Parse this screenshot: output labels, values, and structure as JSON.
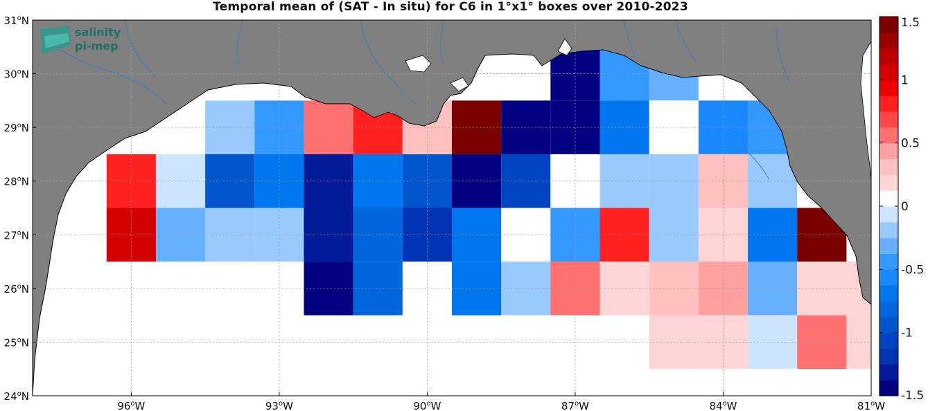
{
  "title": "Temporal mean of (SAT - In situ) for C6 in 1°x1° boxes over 2010-2023",
  "logo": {
    "line1": "salinity",
    "line2": "pi-mep"
  },
  "map": {
    "lon_range": [
      -98,
      -81
    ],
    "lat_range": [
      24,
      31
    ],
    "land_color": "#808080",
    "ocean_color": "#ffffff",
    "grid": true
  },
  "axes": {
    "lon_ticks": [
      {
        "value": -96,
        "label": "96",
        "unit": "W"
      },
      {
        "value": -93,
        "label": "93",
        "unit": "W"
      },
      {
        "value": -90,
        "label": "90",
        "unit": "W"
      },
      {
        "value": -87,
        "label": "87",
        "unit": "W"
      },
      {
        "value": -84,
        "label": "84",
        "unit": "W"
      },
      {
        "value": -81,
        "label": "81",
        "unit": "W"
      }
    ],
    "lat_ticks": [
      {
        "value": 24,
        "label": "24",
        "unit": "N"
      },
      {
        "value": 25,
        "label": "25",
        "unit": "N"
      },
      {
        "value": 26,
        "label": "26",
        "unit": "N"
      },
      {
        "value": 27,
        "label": "27",
        "unit": "N"
      },
      {
        "value": 28,
        "label": "28",
        "unit": "N"
      },
      {
        "value": 29,
        "label": "29",
        "unit": "N"
      },
      {
        "value": 30,
        "label": "30",
        "unit": "N"
      },
      {
        "value": 31,
        "label": "31",
        "unit": "N"
      }
    ],
    "degree_symbol": "o"
  },
  "colorbar": {
    "range": [
      -1.5,
      1.5
    ],
    "n_levels": 24,
    "colors": [
      "#000080",
      "#001a99",
      "#0033b3",
      "#0044c2",
      "#0055cc",
      "#0066dd",
      "#0077ee",
      "#1a88ff",
      "#3399ff",
      "#66b0ff",
      "#99caff",
      "#cce4ff",
      "#ffffff",
      "#ffd5d5",
      "#ffc0c0",
      "#ffa0a0",
      "#ff7070",
      "#ff4545",
      "#ff2020",
      "#ee0000",
      "#d40000",
      "#b80000",
      "#990000",
      "#7a0000"
    ],
    "ticks": [
      {
        "value": 1.5,
        "label": "1.5"
      },
      {
        "value": 1,
        "label": "1"
      },
      {
        "value": 0.5,
        "label": "0.5"
      },
      {
        "value": 0,
        "label": "0"
      },
      {
        "value": -0.5,
        "label": "-0.5"
      },
      {
        "value": -1,
        "label": "-1"
      },
      {
        "value": -1.5,
        "label": "-1.5"
      }
    ]
  },
  "boxes": [
    {
      "lon": -96,
      "lat": 28,
      "v": 0.85
    },
    {
      "lon": -96,
      "lat": 27,
      "v": 1.0
    },
    {
      "lon": -95,
      "lat": 28,
      "v": -0.1
    },
    {
      "lon": -95,
      "lat": 27,
      "v": -0.3
    },
    {
      "lon": -94,
      "lat": 29,
      "v": -0.15
    },
    {
      "lon": -94,
      "lat": 28,
      "v": -0.95
    },
    {
      "lon": -94,
      "lat": 27,
      "v": -0.15
    },
    {
      "lon": -93,
      "lat": 29,
      "v": -0.4
    },
    {
      "lon": -93,
      "lat": 28,
      "v": -0.75
    },
    {
      "lon": -93,
      "lat": 27,
      "v": -0.15
    },
    {
      "lon": -92,
      "lat": 29,
      "v": 0.55
    },
    {
      "lon": -92,
      "lat": 28,
      "v": -1.3
    },
    {
      "lon": -92,
      "lat": 27,
      "v": -1.3
    },
    {
      "lon": -92,
      "lat": 26,
      "v": -1.5
    },
    {
      "lon": -91,
      "lat": 29,
      "v": 0.85
    },
    {
      "lon": -91,
      "lat": 28,
      "v": -0.75
    },
    {
      "lon": -91,
      "lat": 27,
      "v": -0.85
    },
    {
      "lon": -91,
      "lat": 26,
      "v": -0.85
    },
    {
      "lon": -90,
      "lat": 29,
      "v": 0.25
    },
    {
      "lon": -90,
      "lat": 28,
      "v": -0.95
    },
    {
      "lon": -90,
      "lat": 27,
      "v": -1.15
    },
    {
      "lon": -89,
      "lat": 29,
      "v": 1.5
    },
    {
      "lon": -89,
      "lat": 28,
      "v": -1.5
    },
    {
      "lon": -89,
      "lat": 27,
      "v": -0.75
    },
    {
      "lon": -89,
      "lat": 26,
      "v": -0.75
    },
    {
      "lon": -88,
      "lat": 29,
      "v": -1.5
    },
    {
      "lon": -88,
      "lat": 28,
      "v": -1.1
    },
    {
      "lon": -88,
      "lat": 27,
      "v": 0
    },
    {
      "lon": -88,
      "lat": 26,
      "v": -0.25
    },
    {
      "lon": -87,
      "lat": 30,
      "v": -1.5
    },
    {
      "lon": -87,
      "lat": 29,
      "v": -1.5
    },
    {
      "lon": -87,
      "lat": 28,
      "v": 0
    },
    {
      "lon": -87,
      "lat": 27,
      "v": -0.5
    },
    {
      "lon": -87,
      "lat": 26,
      "v": 0.5
    },
    {
      "lon": -86,
      "lat": 30,
      "v": -0.5
    },
    {
      "lon": -86,
      "lat": 29,
      "v": -0.75
    },
    {
      "lon": -86,
      "lat": 28,
      "v": -0.25
    },
    {
      "lon": -86,
      "lat": 27,
      "v": 0.85
    },
    {
      "lon": -86,
      "lat": 26,
      "v": 0.2
    },
    {
      "lon": -85,
      "lat": 30,
      "v": -0.3
    },
    {
      "lon": -85,
      "lat": 29,
      "v": 0
    },
    {
      "lon": -85,
      "lat": 28,
      "v": -0.15
    },
    {
      "lon": -85,
      "lat": 27,
      "v": -0.15
    },
    {
      "lon": -85,
      "lat": 26,
      "v": 0.35
    },
    {
      "lon": -85,
      "lat": 25,
      "v": 0.2
    },
    {
      "lon": -84,
      "lat": 30,
      "v": 0
    },
    {
      "lon": -84,
      "lat": 29,
      "v": -0.55
    },
    {
      "lon": -84,
      "lat": 28,
      "v": 0.3
    },
    {
      "lon": -84,
      "lat": 27,
      "v": 0.2
    },
    {
      "lon": -84,
      "lat": 26,
      "v": 0.45
    },
    {
      "lon": -84,
      "lat": 25,
      "v": 0.2
    },
    {
      "lon": -83,
      "lat": 29,
      "v": -0.45
    },
    {
      "lon": -83,
      "lat": 28,
      "v": -0.15
    },
    {
      "lon": -83,
      "lat": 27,
      "v": -0.7
    },
    {
      "lon": -83,
      "lat": 26,
      "v": -0.35
    },
    {
      "lon": -83,
      "lat": 25,
      "v": -0.1
    },
    {
      "lon": -82,
      "lat": 27,
      "v": 1.5
    },
    {
      "lon": -82,
      "lat": 26,
      "v": 0.2
    },
    {
      "lon": -82,
      "lat": 25,
      "v": 0.6
    },
    {
      "lon": -81,
      "lat": 26,
      "v": 0.2
    },
    {
      "lon": -81,
      "lat": 25,
      "v": 0.2
    }
  ]
}
